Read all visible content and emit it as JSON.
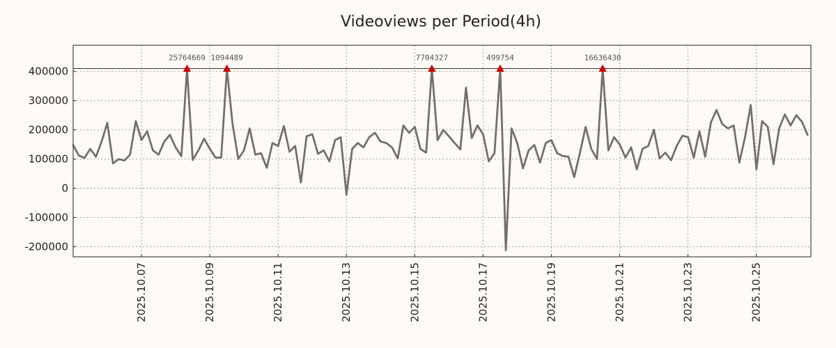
{
  "chart_data": {
    "type": "line",
    "title": "Videoviews per Period(4h)",
    "xlabel": "",
    "ylabel": "",
    "grid": true,
    "x_start_day": 5.0,
    "x_step_days": 0.1667,
    "xlim_days": [
      5.0,
      26.6
    ],
    "ylim": [
      -235000,
      490000
    ],
    "yticks": [
      400000,
      300000,
      200000,
      100000,
      0,
      -100000,
      -200000
    ],
    "ytick_labels": [
      "400000",
      "300000",
      "200000",
      "100000",
      "0",
      "-100000",
      "-200000"
    ],
    "xticks_days": [
      7,
      9,
      11,
      13,
      15,
      17,
      19,
      21,
      23,
      25
    ],
    "xtick_labels": [
      "2025.10.07",
      "2025.10.09",
      "2025.10.11",
      "2025.10.13",
      "2025.10.15",
      "2025.10.17",
      "2025.10.19",
      "2025.10.21",
      "2025.10.23",
      "2025.10.25"
    ],
    "cap_value": 410000,
    "colors": {
      "series": "#707070",
      "marker": "#dd0000",
      "ref_line": "#333333"
    },
    "series": [
      {
        "name": "Videoviews",
        "values": [
          148000,
          112000,
          104000,
          135000,
          108000,
          160000,
          224000,
          85000,
          100000,
          95000,
          115000,
          230000,
          165000,
          195000,
          130000,
          115000,
          160000,
          183000,
          140000,
          110000,
          410000,
          97000,
          130000,
          170000,
          135000,
          105000,
          105000,
          410000,
          220000,
          100000,
          130000,
          205000,
          115000,
          120000,
          70000,
          155000,
          145000,
          213000,
          125000,
          145000,
          20000,
          178000,
          185000,
          118000,
          130000,
          92000,
          165000,
          175000,
          -22000,
          135000,
          155000,
          140000,
          175000,
          190000,
          160000,
          155000,
          140000,
          102000,
          215000,
          190000,
          210000,
          135000,
          122000,
          410000,
          165000,
          200000,
          178000,
          155000,
          133000,
          345000,
          172000,
          215000,
          185000,
          92000,
          120000,
          410000,
          -212000,
          205000,
          155000,
          68000,
          130000,
          148000,
          88000,
          155000,
          165000,
          120000,
          110000,
          108000,
          38000,
          120000,
          210000,
          135000,
          100000,
          410000,
          130000,
          175000,
          150000,
          105000,
          140000,
          65000,
          135000,
          145000,
          200000,
          102000,
          122000,
          96000,
          145000,
          180000,
          175000,
          105000,
          195000,
          108000,
          225000,
          268000,
          220000,
          205000,
          215000,
          88000,
          175000,
          285000,
          65000,
          230000,
          210000,
          82000,
          205000,
          253000,
          215000,
          250000,
          228000,
          182000
        ]
      }
    ],
    "annotations": [
      {
        "index": 20,
        "label": "25764669"
      },
      {
        "index": 27,
        "label": "1094489"
      },
      {
        "index": 63,
        "label": "7704327"
      },
      {
        "index": 75,
        "label": "499754"
      },
      {
        "index": 93,
        "label": "16636430"
      }
    ]
  }
}
